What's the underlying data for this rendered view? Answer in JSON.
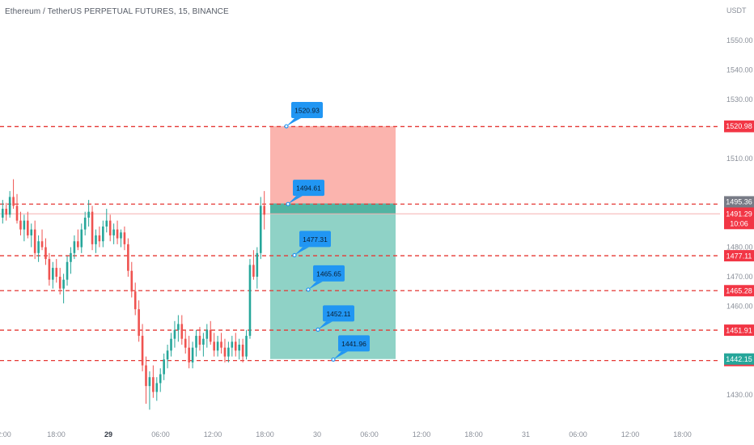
{
  "chart": {
    "title": "Ethereum / TetherUS PERPETUAL FUTURES, 15, BINANCE",
    "currency_unit": "USDT",
    "colors": {
      "up": "#26a69a",
      "down": "#ef5350",
      "level_line": "#e53935",
      "callout": "#2196f3",
      "stop_zone": "#fbb4ae",
      "target_zone": "#8fd2c6",
      "entry_zone": "#52b4a2",
      "current_price_bg": "#787b86",
      "green_tag": "#26a69a",
      "red_tag": "#f23645"
    }
  },
  "chart_data": {
    "type": "candlestick",
    "y_ticks": [
      1550,
      1540,
      1530,
      1520,
      1510,
      1500,
      1490,
      1480,
      1470,
      1460,
      1450,
      1440,
      1430
    ],
    "y_tick_labels": [
      "1550.00",
      "1540.00",
      "1530.00",
      "",
      "1510.00",
      "",
      "",
      "1480.00",
      "1470.00",
      "1460.00",
      "",
      "",
      "1430.00"
    ],
    "y_range": [
      1424,
      1556
    ],
    "x_ticks": [
      "12:00",
      "18:00",
      "29",
      "06:00",
      "12:00",
      "18:00",
      "30",
      "06:00",
      "12:00",
      "18:00",
      "31",
      "06:00",
      "12:00",
      "18:00"
    ],
    "x_ticks_bold": [
      false,
      false,
      true,
      false,
      false,
      false,
      false,
      false,
      false,
      false,
      false,
      false,
      false,
      false
    ],
    "x_tick_labels": [
      "2:00",
      "18:00",
      "29",
      "06:00",
      "12:00",
      "18:00",
      "30",
      "06:00",
      "12:00",
      "18:00",
      "31",
      "06:00",
      "12:00",
      "18:00"
    ],
    "candles_ohlc": [
      [
        1490.0,
        1496.0,
        1488.0,
        1493.0
      ],
      [
        1493.0,
        1495.0,
        1489.0,
        1491.0
      ],
      [
        1491.0,
        1499.0,
        1490.0,
        1497.0
      ],
      [
        1497.0,
        1503.0,
        1493.0,
        1494.0
      ],
      [
        1494.0,
        1498.0,
        1488.0,
        1489.0
      ],
      [
        1489.0,
        1492.0,
        1484.0,
        1486.0
      ],
      [
        1486.0,
        1491.0,
        1482.0,
        1489.0
      ],
      [
        1489.0,
        1492.0,
        1483.0,
        1484.0
      ],
      [
        1484.0,
        1488.0,
        1480.0,
        1486.0
      ],
      [
        1486.0,
        1489.0,
        1476.0,
        1478.0
      ],
      [
        1478.0,
        1484.0,
        1475.0,
        1482.0
      ],
      [
        1482.0,
        1486.0,
        1479.0,
        1480.0
      ],
      [
        1480.0,
        1483.0,
        1474.0,
        1476.0
      ],
      [
        1476.0,
        1478.0,
        1467.0,
        1469.0
      ],
      [
        1469.0,
        1475.0,
        1466.0,
        1473.0
      ],
      [
        1473.0,
        1476.0,
        1468.0,
        1470.0
      ],
      [
        1470.0,
        1473.0,
        1464.0,
        1466.0
      ],
      [
        1466.0,
        1471.0,
        1461.0,
        1469.0
      ],
      [
        1469.0,
        1477.0,
        1467.0,
        1475.0
      ],
      [
        1475.0,
        1480.0,
        1471.0,
        1478.0
      ],
      [
        1478.0,
        1484.0,
        1476.0,
        1482.0
      ],
      [
        1482.0,
        1486.0,
        1479.0,
        1480.0
      ],
      [
        1480.0,
        1488.0,
        1478.0,
        1486.0
      ],
      [
        1486.0,
        1492.0,
        1484.0,
        1490.0
      ],
      [
        1490.0,
        1496.0,
        1487.0,
        1492.0
      ],
      [
        1492.0,
        1494.0,
        1479.0,
        1481.0
      ],
      [
        1481.0,
        1486.0,
        1478.0,
        1484.0
      ],
      [
        1484.0,
        1487.0,
        1480.0,
        1482.0
      ],
      [
        1482.0,
        1489.0,
        1480.0,
        1487.0
      ],
      [
        1487.0,
        1493.0,
        1485.0,
        1489.0
      ],
      [
        1489.0,
        1491.0,
        1482.0,
        1484.0
      ],
      [
        1484.0,
        1488.0,
        1481.0,
        1486.0
      ],
      [
        1486.0,
        1489.0,
        1481.0,
        1483.0
      ],
      [
        1483.0,
        1486.0,
        1480.0,
        1485.0
      ],
      [
        1485.0,
        1487.0,
        1479.0,
        1481.0
      ],
      [
        1481.0,
        1483.0,
        1470.0,
        1472.0
      ],
      [
        1472.0,
        1475.0,
        1463.0,
        1465.0
      ],
      [
        1465.0,
        1468.0,
        1457.0,
        1459.0
      ],
      [
        1459.0,
        1462.0,
        1448.0,
        1450.0
      ],
      [
        1450.0,
        1454.0,
        1438.0,
        1440.0
      ],
      [
        1440.0,
        1443.0,
        1427.0,
        1433.0
      ],
      [
        1433.0,
        1438.0,
        1425.0,
        1436.0
      ],
      [
        1436.0,
        1440.0,
        1429.0,
        1431.0
      ],
      [
        1431.0,
        1436.0,
        1428.0,
        1434.0
      ],
      [
        1434.0,
        1439.0,
        1431.0,
        1437.0
      ],
      [
        1437.0,
        1444.0,
        1435.0,
        1442.0
      ],
      [
        1442.0,
        1447.0,
        1439.0,
        1445.0
      ],
      [
        1445.0,
        1451.0,
        1443.0,
        1449.0
      ],
      [
        1449.0,
        1455.0,
        1446.0,
        1452.0
      ],
      [
        1452.0,
        1457.0,
        1448.0,
        1454.0
      ],
      [
        1454.0,
        1457.0,
        1447.0,
        1449.0
      ],
      [
        1449.0,
        1452.0,
        1444.0,
        1446.0
      ],
      [
        1446.0,
        1450.0,
        1439.0,
        1441.0
      ],
      [
        1441.0,
        1448.0,
        1439.0,
        1446.0
      ],
      [
        1446.0,
        1452.0,
        1443.0,
        1450.0
      ],
      [
        1450.0,
        1453.0,
        1445.0,
        1447.0
      ],
      [
        1447.0,
        1451.0,
        1443.0,
        1449.0
      ],
      [
        1449.0,
        1454.0,
        1446.0,
        1452.0
      ],
      [
        1452.0,
        1455.0,
        1447.0,
        1448.0
      ],
      [
        1448.0,
        1451.0,
        1443.0,
        1445.0
      ],
      [
        1445.0,
        1450.0,
        1443.0,
        1448.0
      ],
      [
        1448.0,
        1451.0,
        1444.0,
        1446.0
      ],
      [
        1446.0,
        1449.0,
        1441.0,
        1443.0
      ],
      [
        1443.0,
        1448.0,
        1441.0,
        1446.0
      ],
      [
        1446.0,
        1450.0,
        1443.0,
        1448.0
      ],
      [
        1448.0,
        1451.0,
        1443.0,
        1445.0
      ],
      [
        1445.0,
        1449.0,
        1442.0,
        1447.0
      ],
      [
        1447.0,
        1449.0,
        1441.0,
        1443.0
      ],
      [
        1443.0,
        1452.0,
        1442.0,
        1450.0
      ],
      [
        1450.0,
        1476.0,
        1449.0,
        1474.0
      ],
      [
        1474.0,
        1479.0,
        1469.0,
        1470.0
      ],
      [
        1470.0,
        1480.0,
        1466.0,
        1478.0
      ],
      [
        1478.0,
        1497.0,
        1476.0,
        1494.0
      ],
      [
        1494.0,
        1499.0,
        1486.0,
        1491.0
      ]
    ],
    "levels": [
      {
        "price": 1520.82,
        "label": "1520.82"
      },
      {
        "price": 1494.59,
        "label": "1494.59"
      },
      {
        "price": 1477.11,
        "label": "1477.11"
      },
      {
        "price": 1465.28,
        "label": "1465.28"
      },
      {
        "price": 1451.91,
        "label": "1451.91"
      },
      {
        "price": 1441.63,
        "label": "1441.63"
      }
    ],
    "callouts": [
      {
        "label": "1520.93",
        "price": 1520.93
      },
      {
        "label": "1494.61",
        "price": 1494.61
      },
      {
        "label": "1477.31",
        "price": 1477.31
      },
      {
        "label": "1465.65",
        "price": 1465.65
      },
      {
        "label": "1452.11",
        "price": 1452.11
      },
      {
        "label": "1441.96",
        "price": 1441.96
      }
    ],
    "position": {
      "stop": 1520.98,
      "entry_high": 1494.8,
      "entry_low": 1491.29,
      "target": 1442.15
    },
    "axis_tags": [
      {
        "label": "1520.98",
        "price": 1520.98,
        "kind": "red"
      },
      {
        "label": "1495.36",
        "price": 1495.36,
        "kind": "gray"
      },
      {
        "label": "1491.29",
        "price": 1491.29,
        "kind": "red",
        "sub": "10:06"
      },
      {
        "label": "1442.15",
        "price": 1442.15,
        "kind": "green"
      }
    ],
    "current_price": 1491.29,
    "countdown": "10:06",
    "grid": false
  }
}
